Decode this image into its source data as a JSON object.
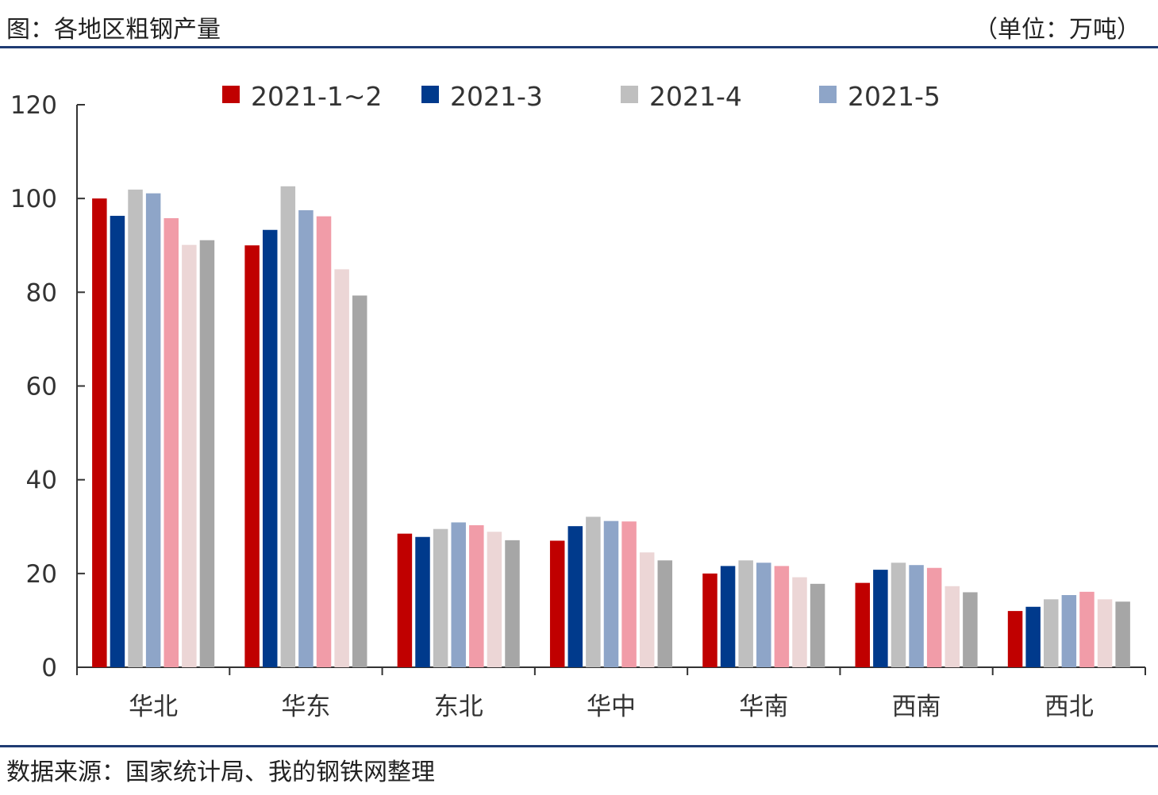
{
  "header": {
    "title": "图：各地区粗钢产量",
    "unit": "（单位：万吨）"
  },
  "footer": {
    "source": "数据来源：国家统计局、我的钢铁网整理"
  },
  "chart_data": {
    "type": "bar",
    "categories": [
      "华北",
      "华东",
      "东北",
      "华中",
      "华南",
      "西南",
      "西北"
    ],
    "ylim": [
      0,
      120
    ],
    "yticks": [
      0,
      20,
      40,
      60,
      80,
      100,
      120
    ],
    "legend_position": "top",
    "series": [
      {
        "name": "2021-1~2",
        "color": "#c00000",
        "legend": true,
        "values": [
          100,
          90,
          28.5,
          27,
          20,
          18,
          12
        ]
      },
      {
        "name": "2021-3",
        "color": "#003a8c",
        "legend": true,
        "values": [
          96.3,
          93.3,
          27.8,
          30.1,
          21.6,
          20.8,
          12.9
        ]
      },
      {
        "name": "2021-4",
        "color": "#bfbfbf",
        "legend": true,
        "values": [
          101.9,
          102.6,
          29.5,
          32.1,
          22.8,
          22.3,
          14.5
        ]
      },
      {
        "name": "2021-5",
        "color": "#8ea5c8",
        "legend": true,
        "values": [
          101.1,
          97.5,
          30.9,
          31.2,
          22.3,
          21.8,
          15.4
        ]
      },
      {
        "color": "#f19ca8",
        "legend": false,
        "values": [
          95.8,
          96.2,
          30.3,
          31.1,
          21.6,
          21.2,
          16.1
        ]
      },
      {
        "color": "#ecd6d6",
        "legend": false,
        "values": [
          90.1,
          84.9,
          28.9,
          24.5,
          19.2,
          17.3,
          14.5
        ]
      },
      {
        "color": "#a6a6a6",
        "legend": false,
        "values": [
          91.1,
          79.3,
          27.1,
          22.8,
          17.8,
          16,
          14
        ]
      }
    ]
  }
}
